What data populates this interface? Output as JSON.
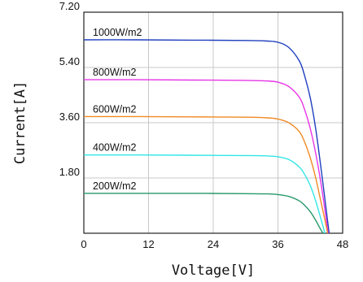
{
  "chart_data": {
    "type": "line",
    "title": "",
    "xlabel": "Voltage[V]",
    "ylabel": "Current[A]",
    "xlim": [
      0,
      48
    ],
    "ylim": [
      0,
      7.2
    ],
    "xticks": [
      0,
      12,
      24,
      36,
      48
    ],
    "xtick_labels": [
      "0",
      "12",
      "24",
      "36",
      "48"
    ],
    "yticks": [
      1.8,
      3.6,
      5.4,
      7.2
    ],
    "ytick_labels": [
      "1.80",
      "3.60",
      "5.40",
      "7.20"
    ],
    "grid": true,
    "legend": "inline labels above curves",
    "series": [
      {
        "name": "1000W/m2",
        "color": "#1f3fbf",
        "x": [
          0,
          10,
          20,
          30,
          34,
          36,
          38,
          40,
          41,
          42,
          43,
          44,
          45,
          45.5
        ],
        "y": [
          6.3,
          6.3,
          6.29,
          6.28,
          6.26,
          6.22,
          6.05,
          5.6,
          5.1,
          4.4,
          3.4,
          2.1,
          0.7,
          0
        ]
      },
      {
        "name": "800W/m2",
        "color": "#e636e6",
        "x": [
          0,
          10,
          20,
          30,
          34,
          36,
          38,
          40,
          41,
          42,
          43,
          44,
          45,
          45.3
        ],
        "y": [
          5.0,
          5.0,
          4.99,
          4.98,
          4.96,
          4.92,
          4.78,
          4.42,
          4.0,
          3.4,
          2.6,
          1.6,
          0.4,
          0
        ]
      },
      {
        "name": "600W/m2",
        "color": "#f08a24",
        "x": [
          0,
          10,
          20,
          30,
          34,
          36,
          38,
          40,
          41,
          42,
          43,
          44,
          45,
          45.2
        ],
        "y": [
          3.8,
          3.8,
          3.79,
          3.78,
          3.76,
          3.72,
          3.6,
          3.3,
          2.95,
          2.45,
          1.8,
          1.0,
          0.2,
          0
        ]
      },
      {
        "name": "400W/m2",
        "color": "#33e6e6",
        "x": [
          0,
          10,
          20,
          30,
          34,
          36,
          38,
          40,
          41,
          42,
          43,
          44,
          44.7
        ],
        "y": [
          2.55,
          2.55,
          2.54,
          2.53,
          2.52,
          2.49,
          2.4,
          2.15,
          1.9,
          1.55,
          1.05,
          0.45,
          0
        ]
      },
      {
        "name": "200W/m2",
        "color": "#27996b",
        "x": [
          0,
          10,
          20,
          30,
          34,
          36,
          38,
          40,
          41,
          42,
          43,
          44,
          44.4
        ],
        "y": [
          1.3,
          1.3,
          1.3,
          1.29,
          1.28,
          1.26,
          1.2,
          1.05,
          0.9,
          0.7,
          0.42,
          0.1,
          0
        ]
      }
    ]
  }
}
